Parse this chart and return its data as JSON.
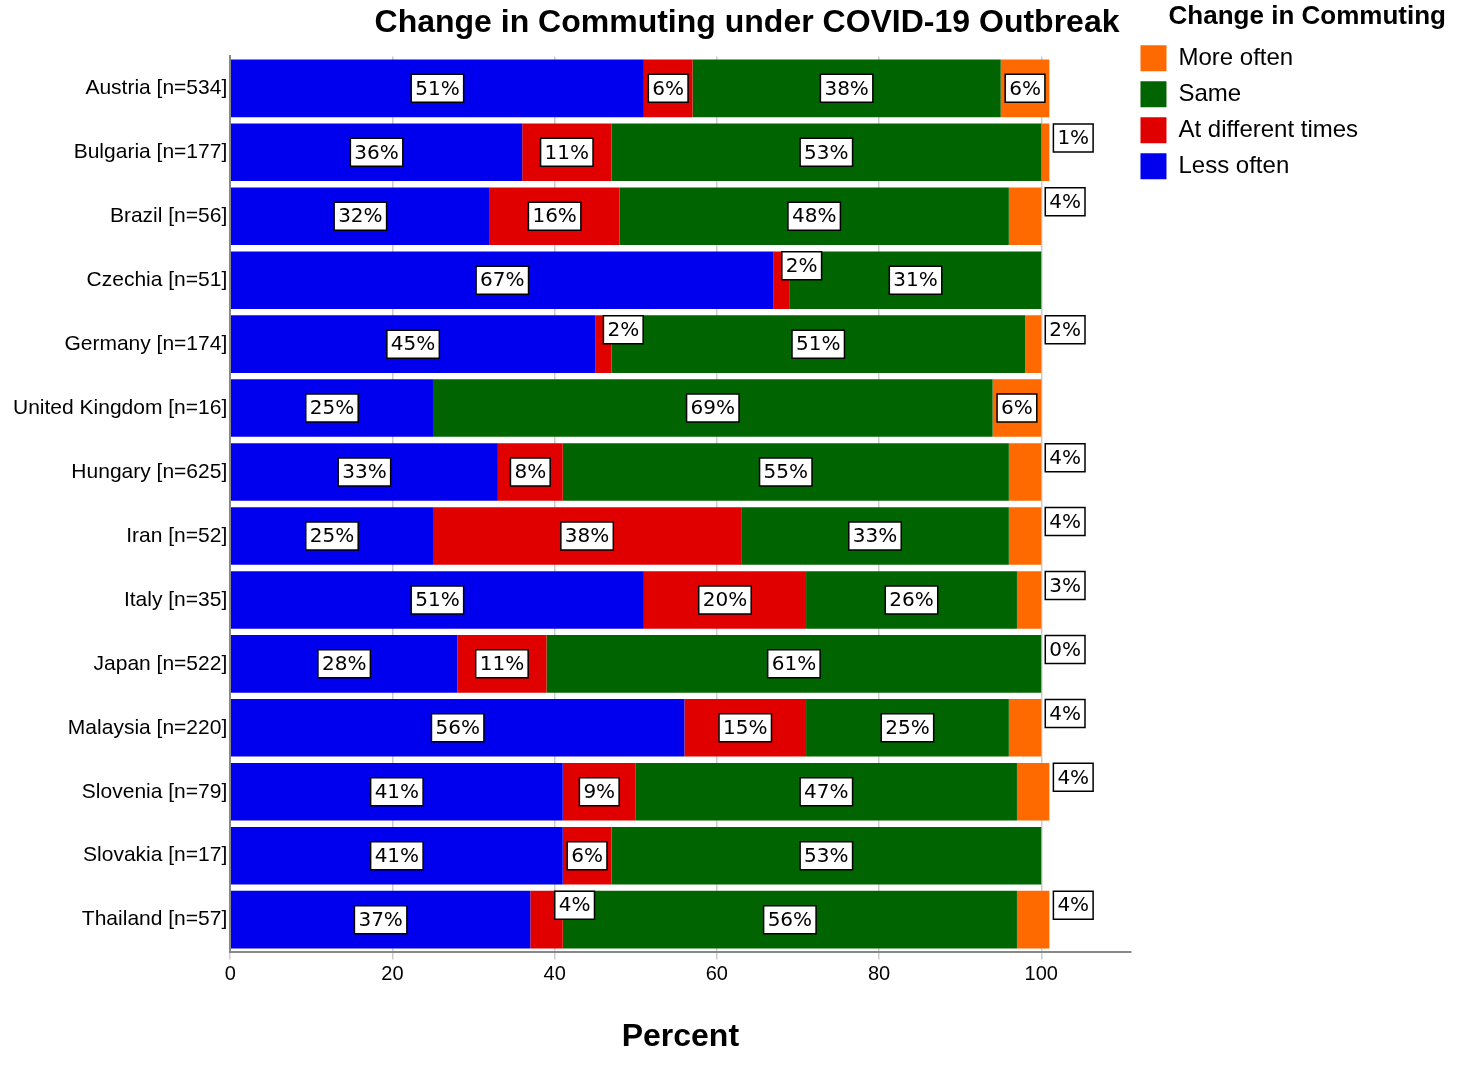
{
  "chart_data": {
    "type": "bar",
    "title": "Change in Commuting under COVID-19 Outbreak",
    "xlabel": "Percent",
    "legend_title": "Change in Commuting",
    "orientation": "horizontal",
    "stacked": true,
    "grid": "x",
    "legend": "right",
    "xlim": [
      0,
      111
    ],
    "xticks": [
      0,
      20,
      40,
      60,
      80,
      100
    ],
    "categories": [
      "Austria [n=534]",
      "Bulgaria [n=177]",
      "Brazil [n=56]",
      "Czechia [n=51]",
      "Germany [n=174]",
      "United Kingdom [n=16]",
      "Hungary [n=625]",
      "Iran [n=52]",
      "Italy [n=35]",
      "Japan [n=522]",
      "Malaysia [n=220]",
      "Slovenia [n=79]",
      "Slovakia [n=17]",
      "Thailand [n=57]"
    ],
    "series": [
      {
        "name": "Less often",
        "color": "#0000ee",
        "values": [
          51,
          36,
          32,
          67,
          45,
          25,
          33,
          25,
          51,
          28,
          56,
          41,
          41,
          37
        ],
        "value_labels": [
          "51%",
          "36%",
          "32%",
          "67%",
          "45%",
          "25%",
          "33%",
          "25%",
          "51%",
          "28%",
          "56%",
          "41%",
          "41%",
          "37%"
        ]
      },
      {
        "name": "At different times",
        "color": "#e00000",
        "values": [
          6,
          11,
          16,
          2,
          2,
          null,
          8,
          38,
          20,
          11,
          15,
          9,
          6,
          4
        ],
        "value_labels": [
          "6%",
          "11%",
          "16%",
          "2%",
          "2%",
          null,
          "8%",
          "38%",
          "20%",
          "11%",
          "15%",
          "9%",
          "6%",
          "4%"
        ]
      },
      {
        "name": "Same",
        "color": "#006400",
        "values": [
          38,
          53,
          48,
          31,
          51,
          69,
          55,
          33,
          26,
          61,
          25,
          47,
          53,
          56
        ],
        "value_labels": [
          "38%",
          "53%",
          "48%",
          "31%",
          "51%",
          "69%",
          "55%",
          "33%",
          "26%",
          "61%",
          "25%",
          "47%",
          "53%",
          "56%"
        ]
      },
      {
        "name": "More often",
        "color": "#ff6a00",
        "values": [
          6,
          1,
          4,
          null,
          2,
          6,
          4,
          4,
          3,
          0,
          4,
          4,
          null,
          4
        ],
        "value_labels": [
          "6%",
          "1%",
          "4%",
          null,
          "2%",
          "6%",
          "4%",
          "4%",
          "3%",
          "0%",
          "4%",
          "4%",
          null,
          "4%"
        ]
      }
    ]
  }
}
